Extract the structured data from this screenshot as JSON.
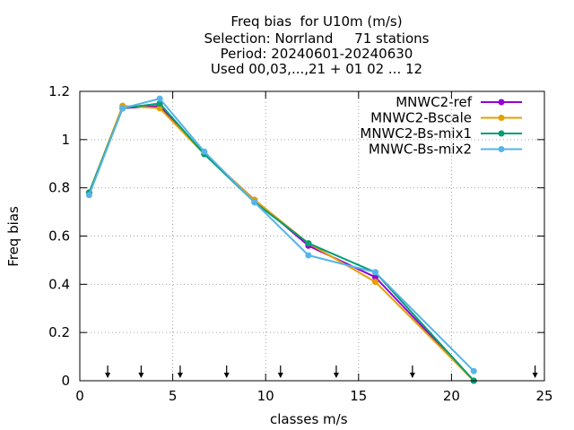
{
  "chart_data": {
    "type": "line",
    "title_lines": [
      "Freq bias  for U10m (m/s)",
      "Selection: Norrland     71 stations",
      "Period: 20240601-20240630",
      "Used 00,03,...,21 + 01 02 ... 12"
    ],
    "xlabel": "classes m/s",
    "ylabel": "Freq bias",
    "xlim": [
      0,
      25
    ],
    "ylim": [
      0,
      1.2
    ],
    "xticks": [
      0,
      5,
      10,
      15,
      20,
      25
    ],
    "xtick_labels": [
      "0",
      "5",
      "10",
      "15",
      "20",
      "25"
    ],
    "yticks": [
      0,
      0.2,
      0.4,
      0.6,
      0.8,
      1.0,
      1.2
    ],
    "ytick_labels": [
      "0",
      "0.2",
      "0.4",
      "0.6",
      "0.8",
      "1",
      "1.2"
    ],
    "grid": true,
    "legend_position": "top-right",
    "class_limit_arrows_x": [
      1.5,
      3.3,
      5.4,
      7.9,
      10.8,
      13.8,
      17.9,
      24.5
    ],
    "series": [
      {
        "name": "MNWC2-ref",
        "color": "#9400d3",
        "x": [
          0.5,
          2.3,
          4.3,
          6.7,
          9.4,
          12.3,
          15.9,
          21.2
        ],
        "values": [
          0.78,
          1.13,
          1.14,
          0.94,
          0.75,
          0.56,
          0.43,
          0.0
        ]
      },
      {
        "name": "MNWC2-Bscale",
        "color": "#e69f00",
        "x": [
          0.5,
          2.3,
          4.3,
          6.7,
          9.4,
          12.3,
          15.9,
          21.2
        ],
        "values": [
          0.78,
          1.14,
          1.13,
          0.94,
          0.75,
          0.57,
          0.41,
          0.0
        ]
      },
      {
        "name": "MNWC2-Bs-mix1",
        "color": "#009e73",
        "x": [
          0.5,
          2.3,
          4.3,
          6.7,
          9.4,
          12.3,
          15.9,
          21.2
        ],
        "values": [
          0.78,
          1.13,
          1.15,
          0.94,
          0.74,
          0.57,
          0.45,
          0.0
        ]
      },
      {
        "name": "MNWC-Bs-mix2",
        "color": "#56b4e9",
        "x": [
          0.5,
          2.3,
          4.3,
          6.7,
          9.4,
          12.3,
          15.9,
          21.2
        ],
        "values": [
          0.77,
          1.13,
          1.17,
          0.95,
          0.74,
          0.52,
          0.45,
          0.04
        ]
      }
    ]
  }
}
